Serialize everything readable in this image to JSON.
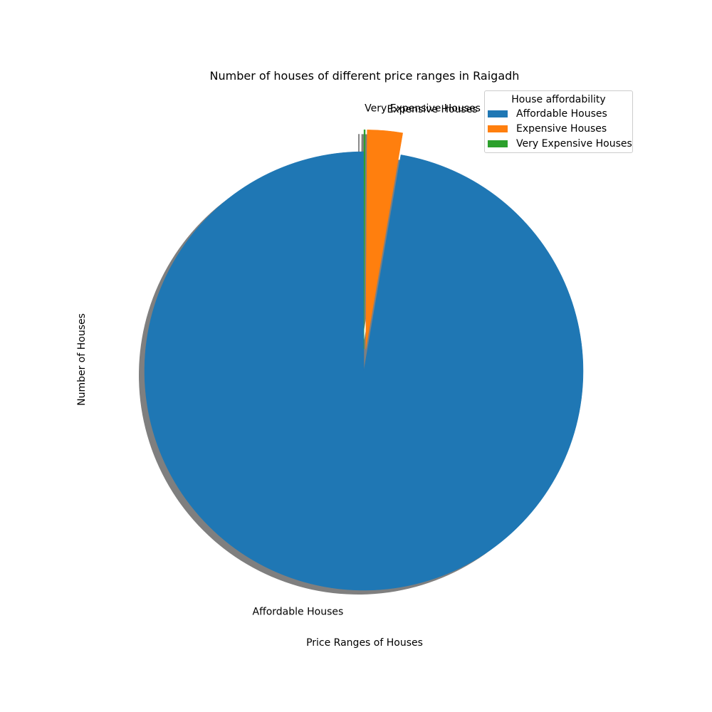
{
  "chart_data": {
    "type": "pie",
    "title": "Number of houses of different price ranges in Raigadh",
    "xlabel": "Price Ranges of Houses",
    "ylabel": "Number of Houses",
    "categories": [
      "Affordable Houses",
      "Expensive Houses",
      "Very Expensive Houses"
    ],
    "values": [
      97.3,
      2.6,
      0.1
    ],
    "colors": [
      "#1f77b4",
      "#ff7f0e",
      "#2ca02c"
    ],
    "explode": [
      0,
      0.1,
      0.1
    ],
    "shadow": true,
    "start_angle_degrees": 90,
    "legend": {
      "title": "House affordability",
      "placement": "top-right",
      "entries": [
        "Affordable Houses",
        "Expensive Houses",
        "Very Expensive Houses"
      ]
    }
  }
}
